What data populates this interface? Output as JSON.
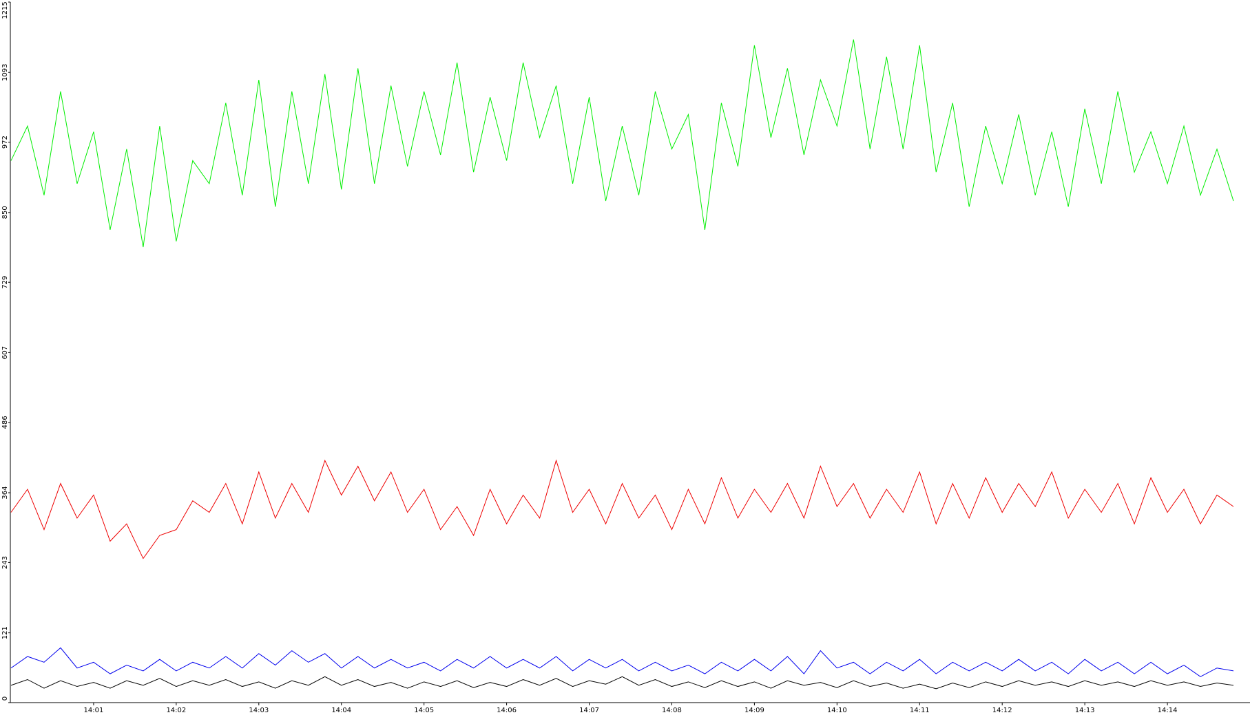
{
  "chart_data": {
    "type": "line",
    "x": [
      0,
      0.2,
      0.4,
      0.6,
      0.8,
      1,
      1.2,
      1.4,
      1.6,
      1.8,
      2,
      2.2,
      2.4,
      2.6,
      2.8,
      3,
      3.2,
      3.4,
      3.6,
      3.8,
      4,
      4.2,
      4.4,
      4.6,
      4.8,
      5,
      5.2,
      5.4,
      5.6,
      5.8,
      6,
      6.2,
      6.4,
      6.6,
      6.8,
      7,
      7.2,
      7.4,
      7.6,
      7.8,
      8,
      8.2,
      8.4,
      8.6,
      8.8,
      9,
      9.2,
      9.4,
      9.6,
      9.8,
      10,
      10.2,
      10.4,
      10.6,
      10.8,
      11,
      11.2,
      11.4,
      11.6,
      11.8,
      12,
      12.2,
      12.4,
      12.6,
      12.8,
      13,
      13.2,
      13.4,
      13.6,
      13.8,
      14,
      14.2,
      14.4,
      14.6,
      14.8
    ],
    "series": [
      {
        "color": "#00ee00",
        "values": [
          940,
          1000,
          880,
          1060,
          900,
          990,
          820,
          960,
          790,
          1000,
          800,
          940,
          900,
          1040,
          880,
          1080,
          860,
          1060,
          900,
          1090,
          890,
          1100,
          900,
          1070,
          930,
          1060,
          950,
          1110,
          920,
          1050,
          940,
          1110,
          980,
          1070,
          900,
          1050,
          870,
          1000,
          880,
          1060,
          960,
          1020,
          820,
          1040,
          930,
          1140,
          980,
          1100,
          950,
          1080,
          1000,
          1150,
          960,
          1120,
          960,
          1140,
          920,
          1040,
          860,
          1000,
          900,
          1020,
          880,
          990,
          860,
          1030,
          900,
          1060,
          920,
          990,
          900,
          1000,
          880,
          960,
          870
        ]
      },
      {
        "color": "#ee0000",
        "values": [
          330,
          370,
          300,
          380,
          320,
          360,
          280,
          310,
          250,
          290,
          300,
          350,
          330,
          380,
          310,
          400,
          320,
          380,
          330,
          420,
          360,
          410,
          350,
          400,
          330,
          370,
          300,
          340,
          290,
          370,
          310,
          360,
          320,
          420,
          330,
          370,
          310,
          380,
          320,
          360,
          300,
          370,
          310,
          390,
          320,
          370,
          330,
          380,
          320,
          410,
          340,
          380,
          320,
          370,
          330,
          400,
          310,
          380,
          320,
          390,
          330,
          380,
          340,
          400,
          320,
          370,
          330,
          380,
          310,
          390,
          330,
          370,
          310,
          360,
          340
        ]
      },
      {
        "color": "#0000ee",
        "values": [
          60,
          80,
          70,
          95,
          60,
          70,
          50,
          65,
          55,
          75,
          55,
          70,
          60,
          80,
          60,
          85,
          65,
          90,
          70,
          85,
          60,
          80,
          60,
          75,
          60,
          70,
          55,
          75,
          60,
          80,
          60,
          75,
          60,
          80,
          55,
          75,
          60,
          75,
          55,
          70,
          55,
          65,
          50,
          70,
          55,
          75,
          55,
          80,
          50,
          90,
          60,
          70,
          50,
          70,
          55,
          75,
          50,
          70,
          55,
          70,
          55,
          75,
          55,
          70,
          50,
          75,
          55,
          70,
          50,
          70,
          50,
          65,
          45,
          60,
          55
        ]
      },
      {
        "color": "#000000",
        "values": [
          30,
          40,
          25,
          38,
          28,
          35,
          25,
          38,
          30,
          42,
          28,
          38,
          30,
          40,
          28,
          36,
          25,
          38,
          30,
          45,
          30,
          40,
          28,
          35,
          25,
          36,
          28,
          38,
          26,
          35,
          28,
          40,
          30,
          42,
          28,
          38,
          32,
          45,
          30,
          40,
          28,
          36,
          26,
          38,
          28,
          36,
          25,
          38,
          30,
          35,
          26,
          38,
          28,
          34,
          25,
          32,
          24,
          34,
          26,
          36,
          28,
          38,
          30,
          36,
          28,
          38,
          30,
          36,
          28,
          38,
          30,
          36,
          28,
          34,
          30
        ]
      }
    ],
    "xlim": [
      0,
      15
    ],
    "xticks": [
      {
        "value": 1,
        "label": "14:01"
      },
      {
        "value": 2,
        "label": "14:02"
      },
      {
        "value": 3,
        "label": "14:03"
      },
      {
        "value": 4,
        "label": "14:04"
      },
      {
        "value": 5,
        "label": "14:05"
      },
      {
        "value": 6,
        "label": "14:06"
      },
      {
        "value": 7,
        "label": "14:07"
      },
      {
        "value": 8,
        "label": "14:08"
      },
      {
        "value": 9,
        "label": "14:09"
      },
      {
        "value": 10,
        "label": "14:10"
      },
      {
        "value": 11,
        "label": "14:11"
      },
      {
        "value": 12,
        "label": "14:12"
      },
      {
        "value": 13,
        "label": "14:13"
      },
      {
        "value": 14,
        "label": "14:14"
      }
    ],
    "ylim": [
      0,
      1215
    ],
    "yticks": [
      0,
      121,
      243,
      364,
      486,
      607,
      729,
      850,
      972,
      1093,
      1215
    ]
  }
}
